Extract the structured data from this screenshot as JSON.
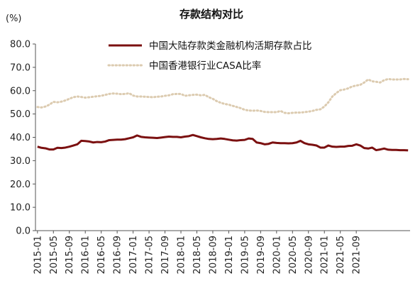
{
  "chart_data": {
    "type": "line",
    "title": "存款结构对比",
    "unit_label": "(%)",
    "ylim": [
      0,
      80
    ],
    "yticks": [
      "0.0",
      "10.0",
      "20.0",
      "30.0",
      "40.0",
      "50.0",
      "60.0",
      "70.0",
      "80.0"
    ],
    "grid": false,
    "legend_position": "top-center",
    "x_tick_labels": [
      "2015-01",
      "2015-05",
      "2015-09",
      "2016-01",
      "2016-05",
      "2016-09",
      "2017-01",
      "2017-05",
      "2017-09",
      "2018-01",
      "2018-05",
      "2018-09",
      "2019-01",
      "2019-05",
      "2019-09",
      "2020-01",
      "2020-05",
      "2020-09",
      "2021-01",
      "2021-05",
      "2021-09"
    ],
    "x_start": "2015-01",
    "x_end": "2021-12",
    "series": [
      {
        "name": "中国大陆存款类金融机构活期存款占比",
        "color": "#7b1010",
        "style": "solid",
        "values": [
          36.0,
          35.5,
          35.3,
          34.8,
          34.8,
          35.5,
          35.4,
          35.6,
          36.0,
          36.5,
          37.0,
          38.5,
          38.4,
          38.2,
          37.8,
          38.0,
          37.9,
          38.2,
          38.8,
          38.9,
          39.0,
          39.0,
          39.2,
          39.6,
          40.0,
          40.8,
          40.2,
          40.0,
          39.9,
          39.8,
          39.7,
          39.9,
          40.1,
          40.3,
          40.2,
          40.2,
          40.0,
          40.3,
          40.5,
          41.0,
          40.5,
          40.0,
          39.6,
          39.3,
          39.2,
          39.3,
          39.5,
          39.3,
          39.0,
          38.7,
          38.6,
          38.8,
          38.9,
          39.5,
          39.3,
          37.8,
          37.5,
          37.0,
          37.2,
          37.8,
          37.6,
          37.5,
          37.5,
          37.4,
          37.5,
          37.8,
          38.5,
          37.5,
          37.0,
          36.8,
          36.5,
          35.6,
          35.6,
          36.5,
          36.0,
          35.9,
          36.0,
          36.0,
          36.3,
          36.4,
          37.0,
          36.5,
          35.4,
          35.2,
          35.6,
          34.5,
          34.8,
          35.2,
          34.7,
          34.6,
          34.6,
          34.5,
          34.5,
          34.4
        ]
      },
      {
        "name": "中国香港银行业CASA比率",
        "color": "#dccbb0",
        "style": "dotted",
        "values": [
          53.0,
          52.8,
          53.2,
          54.0,
          55.2,
          55.0,
          55.3,
          55.8,
          56.5,
          57.2,
          57.5,
          57.3,
          57.0,
          57.2,
          57.4,
          57.6,
          57.8,
          58.2,
          58.6,
          58.8,
          58.7,
          58.5,
          58.6,
          58.9,
          57.9,
          57.5,
          57.5,
          57.4,
          57.3,
          57.2,
          57.4,
          57.5,
          57.8,
          58.0,
          58.5,
          58.6,
          58.6,
          57.8,
          58.0,
          58.2,
          58.3,
          58.0,
          58.2,
          57.2,
          56.5,
          55.5,
          54.8,
          54.3,
          54.0,
          53.5,
          53.0,
          52.5,
          51.8,
          51.5,
          51.4,
          51.5,
          51.3,
          50.9,
          50.8,
          50.8,
          50.8,
          51.3,
          50.5,
          50.3,
          50.5,
          50.6,
          50.6,
          50.8,
          51.0,
          51.3,
          51.8,
          52.0,
          53.2,
          55.0,
          57.5,
          59.0,
          60.2,
          60.5,
          61.0,
          61.8,
          62.2,
          62.5,
          63.5,
          64.8,
          64.0,
          63.8,
          63.5,
          64.5,
          65.0,
          64.8,
          64.8,
          64.8,
          65.0,
          64.9
        ]
      }
    ]
  }
}
